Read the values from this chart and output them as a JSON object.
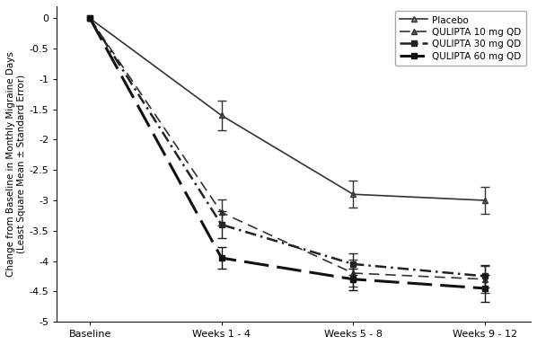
{
  "x_positions": [
    0,
    1,
    2,
    3
  ],
  "x_labels": [
    "Baseline",
    "Weeks 1 - 4",
    "Weeks 5 - 8",
    "Weeks 9 - 12"
  ],
  "series_order": [
    "Placebo",
    "QULIPTA 10 mg QD",
    "QULIPTA 30 mg QD",
    "QULIPTA 60 mg QD"
  ],
  "series": {
    "Placebo": {
      "y": [
        0.0,
        -1.6,
        -2.9,
        -3.0
      ],
      "yerr": [
        0.0,
        0.25,
        0.22,
        0.22
      ],
      "color": "#333333",
      "linestyle": "-",
      "dashes": [],
      "marker": "^",
      "markerfacecolor": "#888888",
      "markersize": 5,
      "linewidth": 1.2
    },
    "QULIPTA 10 mg QD": {
      "y": [
        0.0,
        -3.2,
        -4.2,
        -4.3
      ],
      "yerr": [
        0.0,
        0.22,
        0.22,
        0.22
      ],
      "color": "#333333",
      "linestyle": "--",
      "dashes": [
        7,
        4
      ],
      "marker": "^",
      "markerfacecolor": "#555555",
      "markersize": 5,
      "linewidth": 1.2
    },
    "QULIPTA 30 mg QD": {
      "y": [
        0.0,
        -3.4,
        -4.05,
        -4.25
      ],
      "yerr": [
        0.0,
        0.22,
        0.18,
        0.18
      ],
      "color": "#222222",
      "linestyle": "-.",
      "dashes": [
        5,
        2,
        1,
        2
      ],
      "marker": "s",
      "markerfacecolor": "#222222",
      "markersize": 5,
      "linewidth": 1.8
    },
    "QULIPTA 60 mg QD": {
      "y": [
        0.0,
        -3.95,
        -4.3,
        -4.45
      ],
      "yerr": [
        0.0,
        0.18,
        0.18,
        0.22
      ],
      "color": "#111111",
      "linestyle": "--",
      "dashes": [
        9,
        3
      ],
      "marker": "s",
      "markerfacecolor": "#111111",
      "markersize": 5,
      "linewidth": 2.2
    }
  },
  "ylabel": "Change from Baseline in Monthly Migraine Days\n(Least Square Mean ± Standard Error)",
  "ylim": [
    -5.0,
    0.2
  ],
  "yticks": [
    0.0,
    -0.5,
    -1.0,
    -1.5,
    -2.0,
    -2.5,
    -3.0,
    -3.5,
    -4.0,
    -4.5,
    -5.0
  ],
  "background_color": "#ffffff",
  "legend_fontsize": 7.5,
  "axis_fontsize": 8.0,
  "ylabel_fontsize": 7.5
}
